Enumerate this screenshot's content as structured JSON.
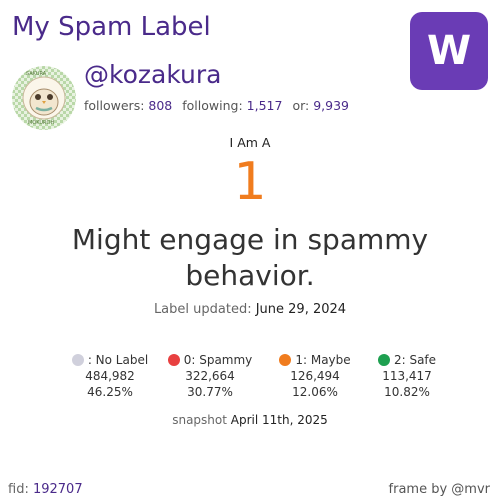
{
  "header": {
    "title": "My Spam Label"
  },
  "logo": {
    "letter": "W",
    "color": "#6a3cb5"
  },
  "profile": {
    "handle": "@kozakura",
    "avatar_text_top": "SAKURA",
    "avatar_text_bottom": "MOKUROH",
    "followers_label": "followers:",
    "followers_value": "808",
    "following_label": "following:",
    "following_value": "1,517",
    "or_label": "or:",
    "or_value": "9,939"
  },
  "label": {
    "intro": "I Am A",
    "value": "1",
    "description": "Might engage in spammy behavior.",
    "updated_label": "Label updated:",
    "updated_value": "June 29, 2024"
  },
  "legend": [
    {
      "name": ": No Label",
      "count": "484,982",
      "percent": "46.25%",
      "color": "#d0d0dc"
    },
    {
      "name": "0: Spammy",
      "count": "322,664",
      "percent": "30.77%",
      "color": "#e84040"
    },
    {
      "name": "1: Maybe",
      "count": "126,494",
      "percent": "12.06%",
      "color": "#f07c1e"
    },
    {
      "name": "2: Safe",
      "count": "113,417",
      "percent": "10.82%",
      "color": "#1ea050"
    }
  ],
  "snapshot": {
    "label": "snapshot",
    "value": "April 11th, 2025"
  },
  "footer": {
    "fid_label": "fid:",
    "fid_value": "192707",
    "frame_by": "frame by @mvr"
  }
}
